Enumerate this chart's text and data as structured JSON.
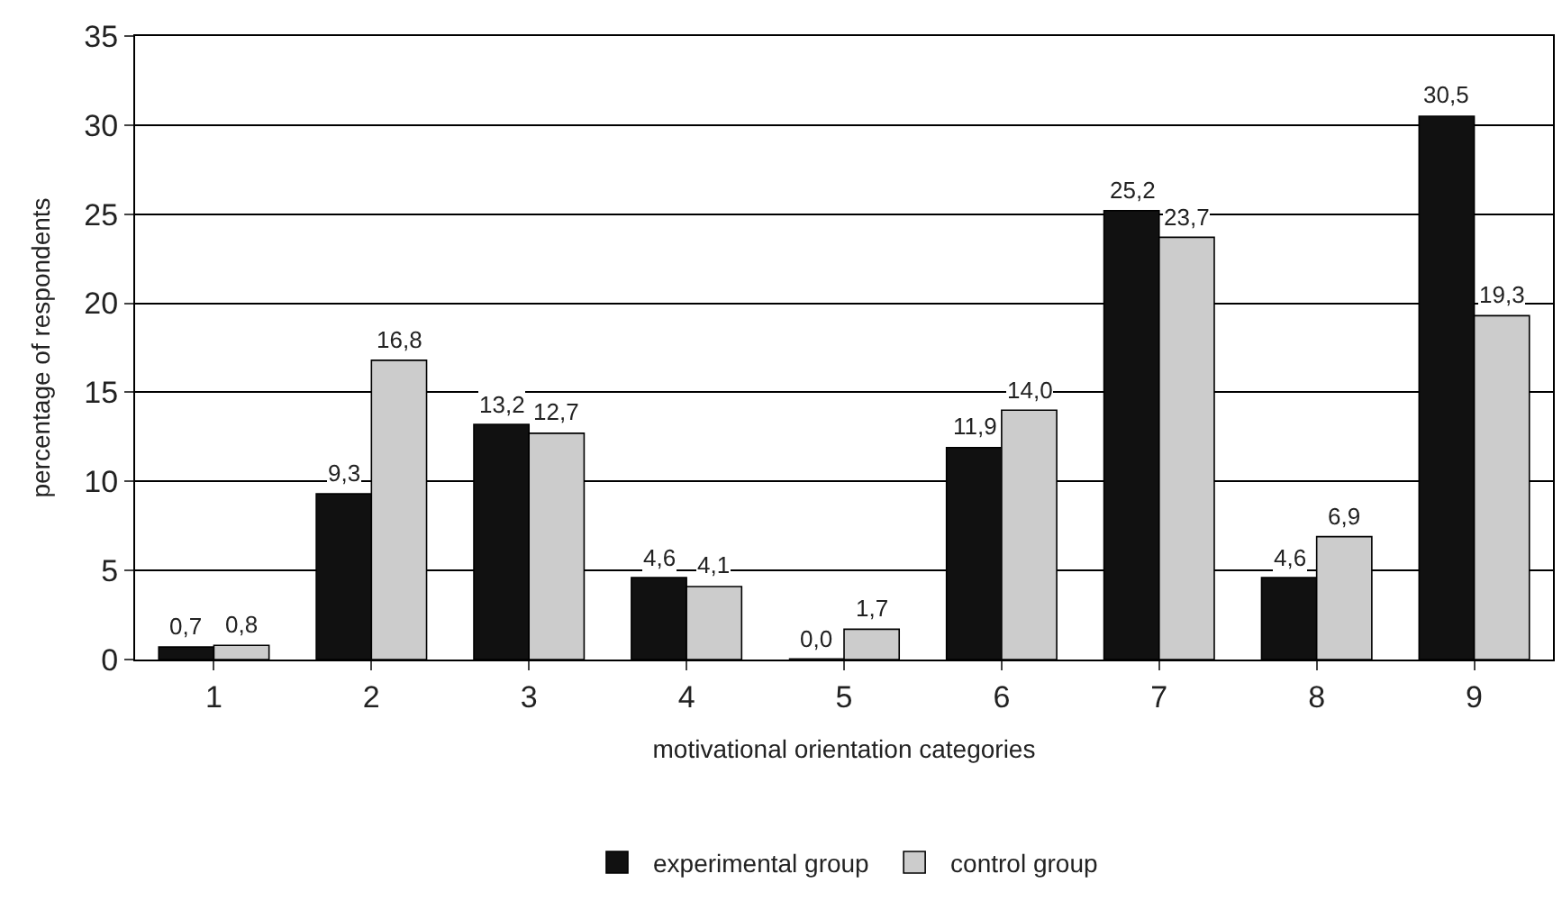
{
  "chart_data": {
    "type": "bar",
    "xlabel": "motivational orientation categories",
    "ylabel": "percentage of respondents",
    "categories": [
      "1",
      "2",
      "3",
      "4",
      "5",
      "6",
      "7",
      "8",
      "9"
    ],
    "series": [
      {
        "name": "experimental group",
        "color": "#111111",
        "values": [
          0.7,
          9.3,
          13.2,
          4.6,
          0.0,
          11.9,
          25.2,
          4.6,
          30.5
        ],
        "value_labels": [
          "0,7",
          "9,3",
          "13,2",
          "4,6",
          "0,0",
          "11,9",
          "25,2",
          "4,6",
          "30,5"
        ]
      },
      {
        "name": "control group",
        "color": "#cccccc",
        "values": [
          0.8,
          16.8,
          12.7,
          4.1,
          1.7,
          14.0,
          23.7,
          6.9,
          19.3
        ],
        "value_labels": [
          "0,8",
          "16,8",
          "12,7",
          "4,1",
          "1,7",
          "14,0",
          "23,7",
          "6,9",
          "19,3"
        ]
      }
    ],
    "ylim": [
      0,
      35
    ],
    "yticks": [
      0,
      5,
      10,
      15,
      20,
      25,
      30,
      35
    ],
    "grid": "y",
    "legend": "bottom"
  }
}
